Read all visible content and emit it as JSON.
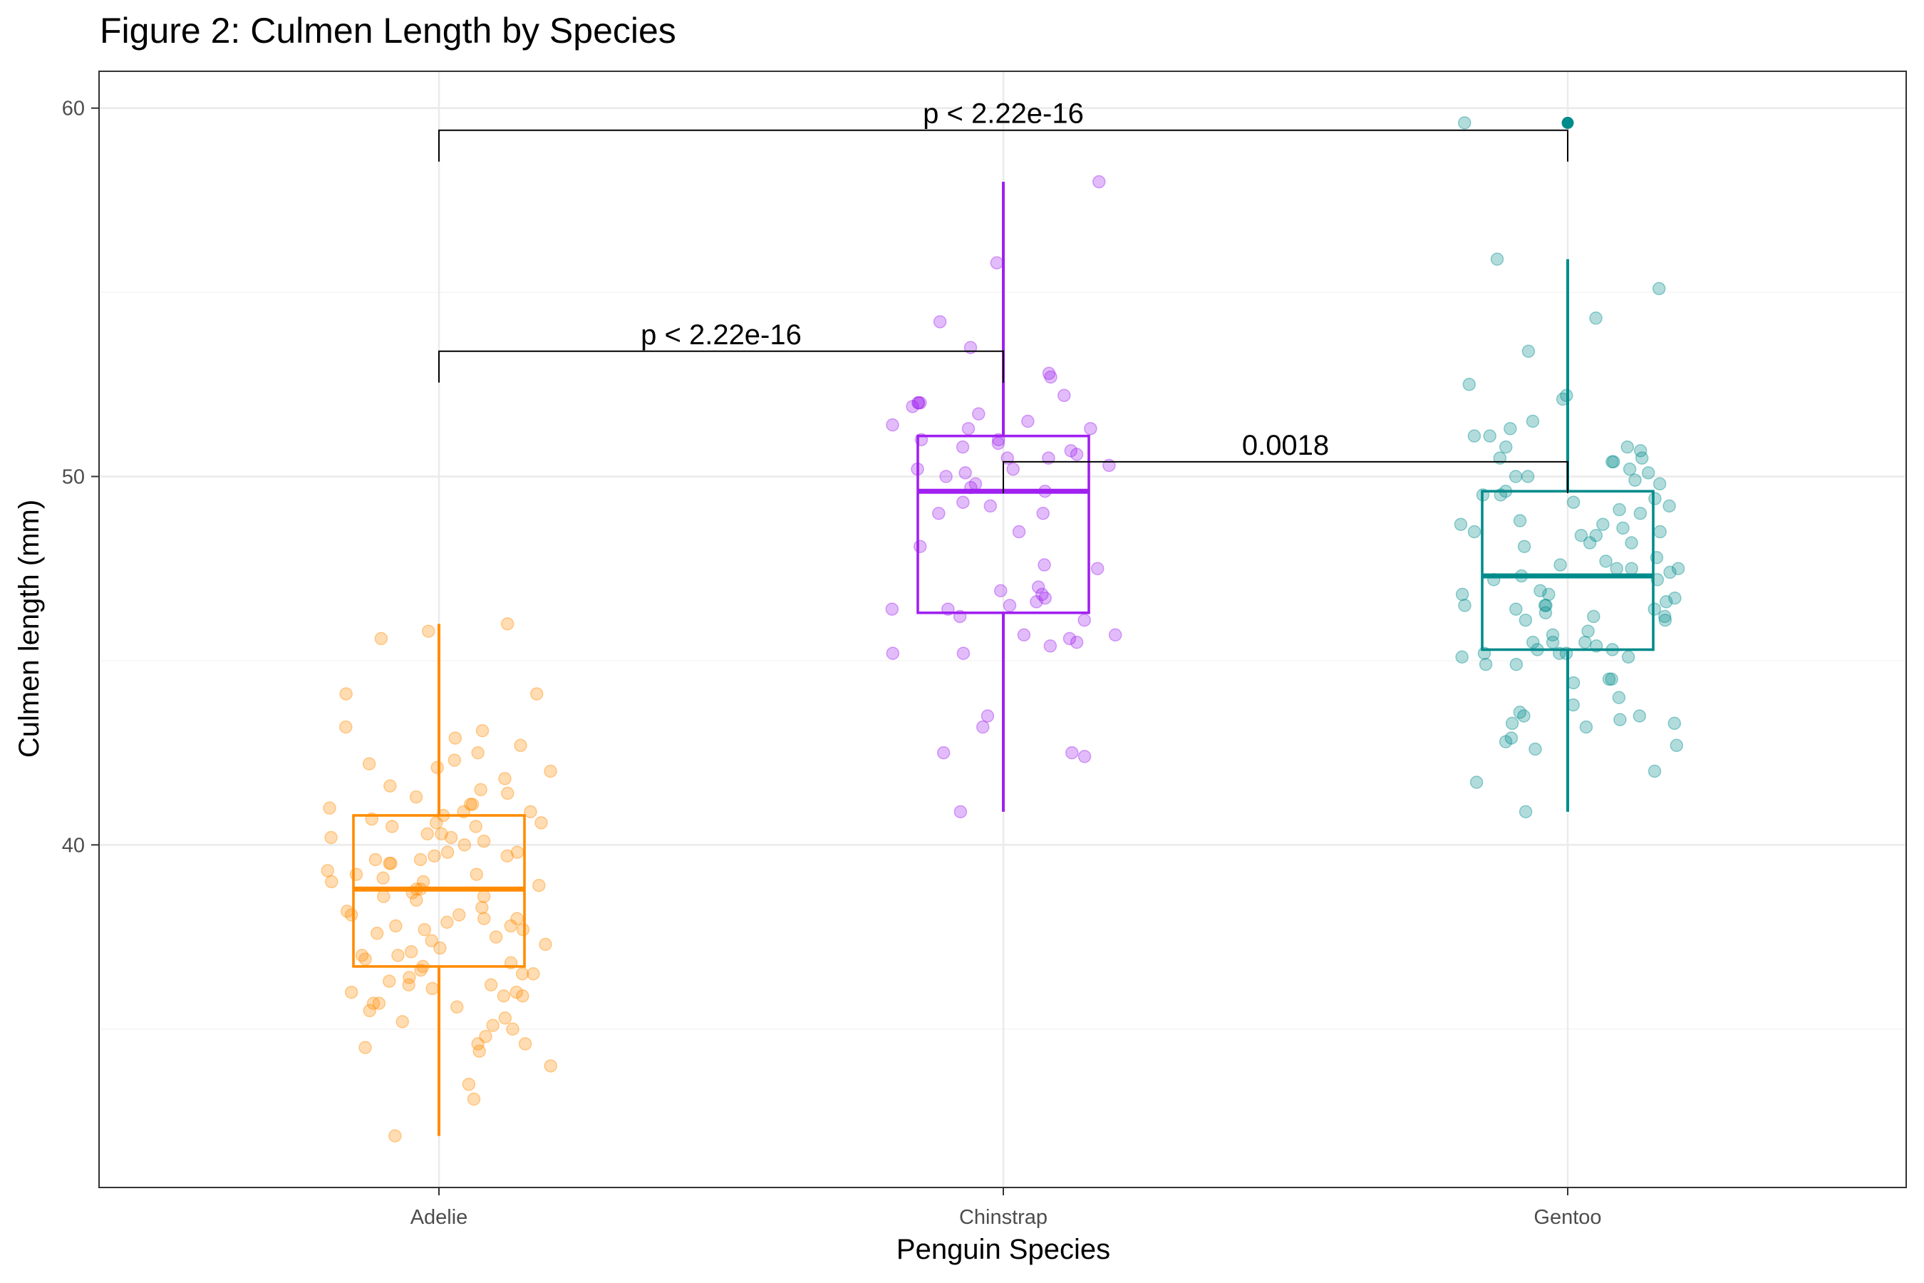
{
  "chart_data": {
    "type": "box",
    "title": "Figure 2: Culmen Length by Species",
    "xlabel": "Penguin Species",
    "ylabel": "Culmen length (mm)",
    "categories": [
      "Adelie",
      "Chinstrap",
      "Gentoo"
    ],
    "ylim": [
      30.7,
      61
    ],
    "yticks": [
      40,
      50,
      60
    ],
    "grid": true,
    "colors": {
      "Adelie": "#FF8C00",
      "Chinstrap": "#A020F0",
      "Gentoo": "#008B8B"
    },
    "boxes": [
      {
        "category": "Adelie",
        "min": 32.1,
        "q1": 36.7,
        "median": 38.8,
        "q3": 40.8,
        "max": 46.0,
        "outliers": []
      },
      {
        "category": "Chinstrap",
        "min": 40.9,
        "q1": 46.3,
        "median": 49.6,
        "q3": 51.1,
        "max": 58.0,
        "outliers": []
      },
      {
        "category": "Gentoo",
        "min": 40.9,
        "q1": 45.3,
        "median": 47.3,
        "q3": 49.6,
        "max": 55.9,
        "outliers": [
          59.6
        ]
      }
    ],
    "comparisons": [
      {
        "group1": "Adelie",
        "group2": "Chinstrap",
        "label": "p < 2.22e-16",
        "y": 53.4
      },
      {
        "group1": "Chinstrap",
        "group2": "Gentoo",
        "label": "0.0018",
        "y": 50.4
      },
      {
        "group1": "Adelie",
        "group2": "Gentoo",
        "label": "p < 2.22e-16",
        "y": 59.4
      }
    ],
    "points": {
      "Adelie": [
        33.1,
        32.1,
        33.5,
        34.0,
        34.4,
        34.6,
        34.5,
        34.6,
        34.8,
        35.0,
        35.1,
        35.2,
        35.3,
        35.5,
        35.6,
        35.7,
        35.7,
        35.9,
        35.9,
        36.0,
        36.0,
        36.1,
        36.2,
        36.2,
        36.3,
        36.4,
        36.5,
        36.5,
        36.6,
        36.7,
        36.8,
        36.9,
        37.0,
        37.0,
        37.1,
        37.2,
        37.3,
        37.4,
        37.5,
        37.6,
        37.7,
        37.7,
        37.8,
        37.8,
        37.9,
        38.0,
        38.0,
        38.1,
        38.1,
        38.2,
        38.3,
        38.5,
        38.6,
        38.6,
        38.7,
        38.8,
        38.8,
        38.9,
        39.0,
        39.0,
        39.1,
        39.2,
        39.2,
        39.3,
        39.5,
        39.5,
        39.6,
        39.6,
        39.7,
        39.7,
        39.8,
        39.8,
        40.0,
        40.1,
        40.2,
        40.2,
        40.3,
        40.3,
        40.5,
        40.5,
        40.6,
        40.6,
        40.7,
        40.8,
        40.9,
        40.9,
        41.0,
        41.1,
        41.1,
        41.3,
        41.4,
        41.5,
        41.6,
        41.8,
        42.0,
        42.1,
        42.2,
        42.3,
        42.5,
        42.7,
        42.9,
        43.1,
        43.2,
        44.1,
        44.1,
        45.6,
        45.8,
        46.0
      ],
      "Chinstrap": [
        40.9,
        42.4,
        42.5,
        42.5,
        43.2,
        43.5,
        45.2,
        45.2,
        45.4,
        45.5,
        45.6,
        45.7,
        45.7,
        46.1,
        46.2,
        46.4,
        46.4,
        46.5,
        46.6,
        46.7,
        46.8,
        46.9,
        47.0,
        47.5,
        47.6,
        48.1,
        48.5,
        49.0,
        49.0,
        49.2,
        49.3,
        49.6,
        49.7,
        49.8,
        50.0,
        50.1,
        50.2,
        50.2,
        50.3,
        50.5,
        50.5,
        50.6,
        50.7,
        50.8,
        50.9,
        51.0,
        51.0,
        51.3,
        51.3,
        51.4,
        51.5,
        51.7,
        51.9,
        52.0,
        52.0,
        52.0,
        52.2,
        52.7,
        52.8,
        53.5,
        54.2,
        55.8,
        58.0
      ],
      "Gentoo": [
        40.9,
        41.7,
        42.0,
        42.6,
        42.7,
        42.8,
        42.9,
        43.2,
        43.3,
        43.3,
        43.4,
        43.5,
        43.5,
        43.6,
        43.8,
        44.0,
        44.4,
        44.5,
        44.5,
        44.9,
        44.9,
        45.1,
        45.1,
        45.2,
        45.2,
        45.2,
        45.3,
        45.3,
        45.4,
        45.5,
        45.5,
        45.5,
        45.7,
        45.8,
        46.1,
        46.1,
        46.2,
        46.2,
        46.3,
        46.4,
        46.4,
        46.5,
        46.5,
        46.5,
        46.6,
        46.7,
        46.8,
        46.8,
        46.9,
        47.2,
        47.2,
        47.3,
        47.4,
        47.5,
        47.5,
        47.5,
        47.6,
        47.7,
        47.8,
        48.1,
        48.2,
        48.2,
        48.4,
        48.4,
        48.5,
        48.5,
        48.6,
        48.7,
        48.7,
        48.8,
        49.0,
        49.1,
        49.2,
        49.3,
        49.4,
        49.5,
        49.5,
        49.6,
        49.8,
        49.9,
        50.0,
        50.0,
        50.1,
        50.2,
        50.4,
        50.4,
        50.5,
        50.5,
        50.7,
        50.8,
        50.8,
        51.1,
        51.1,
        51.3,
        51.5,
        52.1,
        52.2,
        52.5,
        53.4,
        54.3,
        55.1,
        55.9,
        59.6
      ]
    }
  }
}
